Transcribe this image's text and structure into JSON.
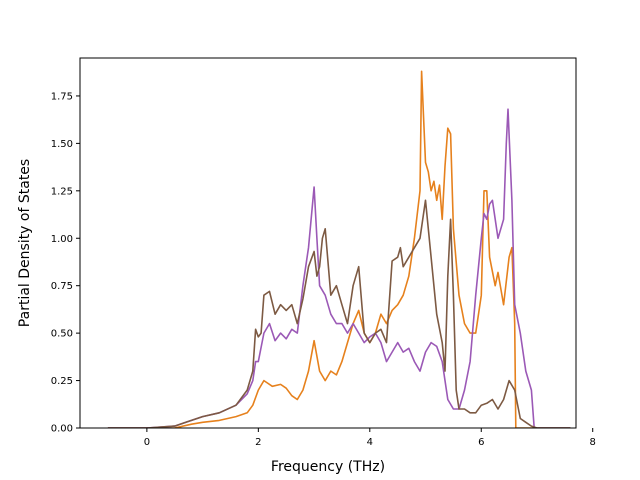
{
  "chart_data": {
    "type": "line",
    "title": "",
    "xlabel": "Frequency (THz)",
    "ylabel": "Partial Density of States",
    "xlim": [
      -1.2,
      7.7
    ],
    "ylim": [
      0.0,
      1.95
    ],
    "xticks": [
      "0",
      "2",
      "4",
      "6",
      "8"
    ],
    "yticks": [
      "0.00",
      "0.25",
      "0.50",
      "0.75",
      "1.00",
      "1.25",
      "1.50",
      "1.75"
    ],
    "grid": false,
    "legend": "none",
    "series": [
      {
        "color": "#e6811d",
        "points": [
          [
            -0.7,
            0.0
          ],
          [
            0.0,
            0.0
          ],
          [
            0.5,
            0.0
          ],
          [
            0.8,
            0.02
          ],
          [
            1.0,
            0.03
          ],
          [
            1.3,
            0.04
          ],
          [
            1.6,
            0.06
          ],
          [
            1.8,
            0.08
          ],
          [
            1.9,
            0.12
          ],
          [
            2.0,
            0.2
          ],
          [
            2.1,
            0.25
          ],
          [
            2.15,
            0.24
          ],
          [
            2.25,
            0.22
          ],
          [
            2.4,
            0.23
          ],
          [
            2.5,
            0.21
          ],
          [
            2.6,
            0.17
          ],
          [
            2.7,
            0.15
          ],
          [
            2.8,
            0.2
          ],
          [
            2.9,
            0.3
          ],
          [
            3.0,
            0.46
          ],
          [
            3.1,
            0.3
          ],
          [
            3.2,
            0.25
          ],
          [
            3.3,
            0.3
          ],
          [
            3.4,
            0.28
          ],
          [
            3.5,
            0.35
          ],
          [
            3.6,
            0.45
          ],
          [
            3.7,
            0.55
          ],
          [
            3.8,
            0.62
          ],
          [
            3.9,
            0.5
          ],
          [
            4.0,
            0.45
          ],
          [
            4.1,
            0.5
          ],
          [
            4.2,
            0.6
          ],
          [
            4.3,
            0.55
          ],
          [
            4.4,
            0.62
          ],
          [
            4.5,
            0.65
          ],
          [
            4.6,
            0.7
          ],
          [
            4.7,
            0.8
          ],
          [
            4.8,
            1.0
          ],
          [
            4.9,
            1.25
          ],
          [
            4.93,
            1.88
          ],
          [
            5.0,
            1.4
          ],
          [
            5.05,
            1.35
          ],
          [
            5.1,
            1.25
          ],
          [
            5.15,
            1.3
          ],
          [
            5.2,
            1.2
          ],
          [
            5.25,
            1.28
          ],
          [
            5.3,
            1.1
          ],
          [
            5.35,
            1.38
          ],
          [
            5.4,
            1.58
          ],
          [
            5.45,
            1.55
          ],
          [
            5.5,
            1.05
          ],
          [
            5.6,
            0.7
          ],
          [
            5.7,
            0.55
          ],
          [
            5.8,
            0.5
          ],
          [
            5.9,
            0.5
          ],
          [
            6.0,
            0.7
          ],
          [
            6.05,
            1.25
          ],
          [
            6.1,
            1.25
          ],
          [
            6.15,
            0.9
          ],
          [
            6.25,
            0.75
          ],
          [
            6.3,
            0.82
          ],
          [
            6.4,
            0.65
          ],
          [
            6.5,
            0.9
          ],
          [
            6.55,
            0.95
          ],
          [
            6.6,
            0.55
          ],
          [
            6.62,
            0.0
          ],
          [
            6.7,
            0.0
          ],
          [
            7.0,
            0.0
          ],
          [
            7.6,
            0.0
          ]
        ]
      },
      {
        "color": "#9b59b6",
        "points": [
          [
            -0.7,
            0.0
          ],
          [
            0.0,
            0.0
          ],
          [
            0.5,
            0.01
          ],
          [
            0.7,
            0.03
          ],
          [
            1.0,
            0.06
          ],
          [
            1.3,
            0.08
          ],
          [
            1.6,
            0.12
          ],
          [
            1.8,
            0.18
          ],
          [
            1.9,
            0.25
          ],
          [
            1.95,
            0.35
          ],
          [
            2.0,
            0.35
          ],
          [
            2.1,
            0.5
          ],
          [
            2.2,
            0.55
          ],
          [
            2.3,
            0.46
          ],
          [
            2.4,
            0.5
          ],
          [
            2.5,
            0.47
          ],
          [
            2.6,
            0.52
          ],
          [
            2.7,
            0.5
          ],
          [
            2.8,
            0.75
          ],
          [
            2.9,
            0.95
          ],
          [
            3.0,
            1.27
          ],
          [
            3.05,
            1.0
          ],
          [
            3.1,
            0.75
          ],
          [
            3.2,
            0.7
          ],
          [
            3.3,
            0.6
          ],
          [
            3.4,
            0.55
          ],
          [
            3.5,
            0.55
          ],
          [
            3.6,
            0.5
          ],
          [
            3.7,
            0.55
          ],
          [
            3.8,
            0.5
          ],
          [
            3.9,
            0.45
          ],
          [
            4.0,
            0.48
          ],
          [
            4.1,
            0.5
          ],
          [
            4.2,
            0.45
          ],
          [
            4.3,
            0.35
          ],
          [
            4.4,
            0.4
          ],
          [
            4.5,
            0.45
          ],
          [
            4.6,
            0.4
          ],
          [
            4.7,
            0.42
          ],
          [
            4.8,
            0.35
          ],
          [
            4.9,
            0.3
          ],
          [
            5.0,
            0.4
          ],
          [
            5.1,
            0.45
          ],
          [
            5.2,
            0.43
          ],
          [
            5.3,
            0.35
          ],
          [
            5.4,
            0.15
          ],
          [
            5.5,
            0.1
          ],
          [
            5.6,
            0.1
          ],
          [
            5.7,
            0.2
          ],
          [
            5.8,
            0.35
          ],
          [
            5.9,
            0.7
          ],
          [
            6.0,
            1.0
          ],
          [
            6.05,
            1.13
          ],
          [
            6.1,
            1.1
          ],
          [
            6.15,
            1.18
          ],
          [
            6.2,
            1.2
          ],
          [
            6.3,
            1.0
          ],
          [
            6.4,
            1.1
          ],
          [
            6.45,
            1.5
          ],
          [
            6.48,
            1.68
          ],
          [
            6.55,
            1.2
          ],
          [
            6.6,
            0.65
          ],
          [
            6.7,
            0.5
          ],
          [
            6.8,
            0.3
          ],
          [
            6.9,
            0.2
          ],
          [
            6.95,
            0.0
          ],
          [
            7.0,
            0.0
          ],
          [
            7.6,
            0.0
          ]
        ]
      },
      {
        "color": "#7d5a43",
        "points": [
          [
            -0.7,
            0.0
          ],
          [
            0.0,
            0.0
          ],
          [
            0.5,
            0.01
          ],
          [
            0.7,
            0.03
          ],
          [
            1.0,
            0.06
          ],
          [
            1.3,
            0.08
          ],
          [
            1.6,
            0.12
          ],
          [
            1.8,
            0.2
          ],
          [
            1.9,
            0.3
          ],
          [
            1.95,
            0.52
          ],
          [
            2.0,
            0.48
          ],
          [
            2.05,
            0.5
          ],
          [
            2.1,
            0.7
          ],
          [
            2.2,
            0.72
          ],
          [
            2.3,
            0.6
          ],
          [
            2.4,
            0.65
          ],
          [
            2.5,
            0.62
          ],
          [
            2.6,
            0.65
          ],
          [
            2.7,
            0.55
          ],
          [
            2.8,
            0.68
          ],
          [
            2.9,
            0.85
          ],
          [
            3.0,
            0.93
          ],
          [
            3.05,
            0.8
          ],
          [
            3.1,
            0.85
          ],
          [
            3.15,
            1.0
          ],
          [
            3.2,
            1.05
          ],
          [
            3.3,
            0.7
          ],
          [
            3.4,
            0.75
          ],
          [
            3.5,
            0.65
          ],
          [
            3.6,
            0.55
          ],
          [
            3.7,
            0.75
          ],
          [
            3.8,
            0.85
          ],
          [
            3.9,
            0.5
          ],
          [
            4.0,
            0.45
          ],
          [
            4.1,
            0.5
          ],
          [
            4.2,
            0.52
          ],
          [
            4.3,
            0.45
          ],
          [
            4.4,
            0.88
          ],
          [
            4.5,
            0.9
          ],
          [
            4.55,
            0.95
          ],
          [
            4.6,
            0.85
          ],
          [
            4.7,
            0.9
          ],
          [
            4.8,
            0.95
          ],
          [
            4.9,
            1.0
          ],
          [
            5.0,
            1.2
          ],
          [
            5.1,
            0.9
          ],
          [
            5.2,
            0.6
          ],
          [
            5.3,
            0.45
          ],
          [
            5.35,
            0.3
          ],
          [
            5.4,
            0.8
          ],
          [
            5.45,
            1.1
          ],
          [
            5.5,
            0.7
          ],
          [
            5.55,
            0.2
          ],
          [
            5.6,
            0.1
          ],
          [
            5.7,
            0.1
          ],
          [
            5.8,
            0.08
          ],
          [
            5.9,
            0.08
          ],
          [
            6.0,
            0.12
          ],
          [
            6.1,
            0.13
          ],
          [
            6.2,
            0.15
          ],
          [
            6.3,
            0.1
          ],
          [
            6.4,
            0.15
          ],
          [
            6.5,
            0.25
          ],
          [
            6.6,
            0.2
          ],
          [
            6.7,
            0.05
          ],
          [
            6.8,
            0.03
          ],
          [
            6.9,
            0.01
          ],
          [
            7.0,
            0.0
          ],
          [
            7.6,
            0.0
          ]
        ]
      }
    ]
  }
}
